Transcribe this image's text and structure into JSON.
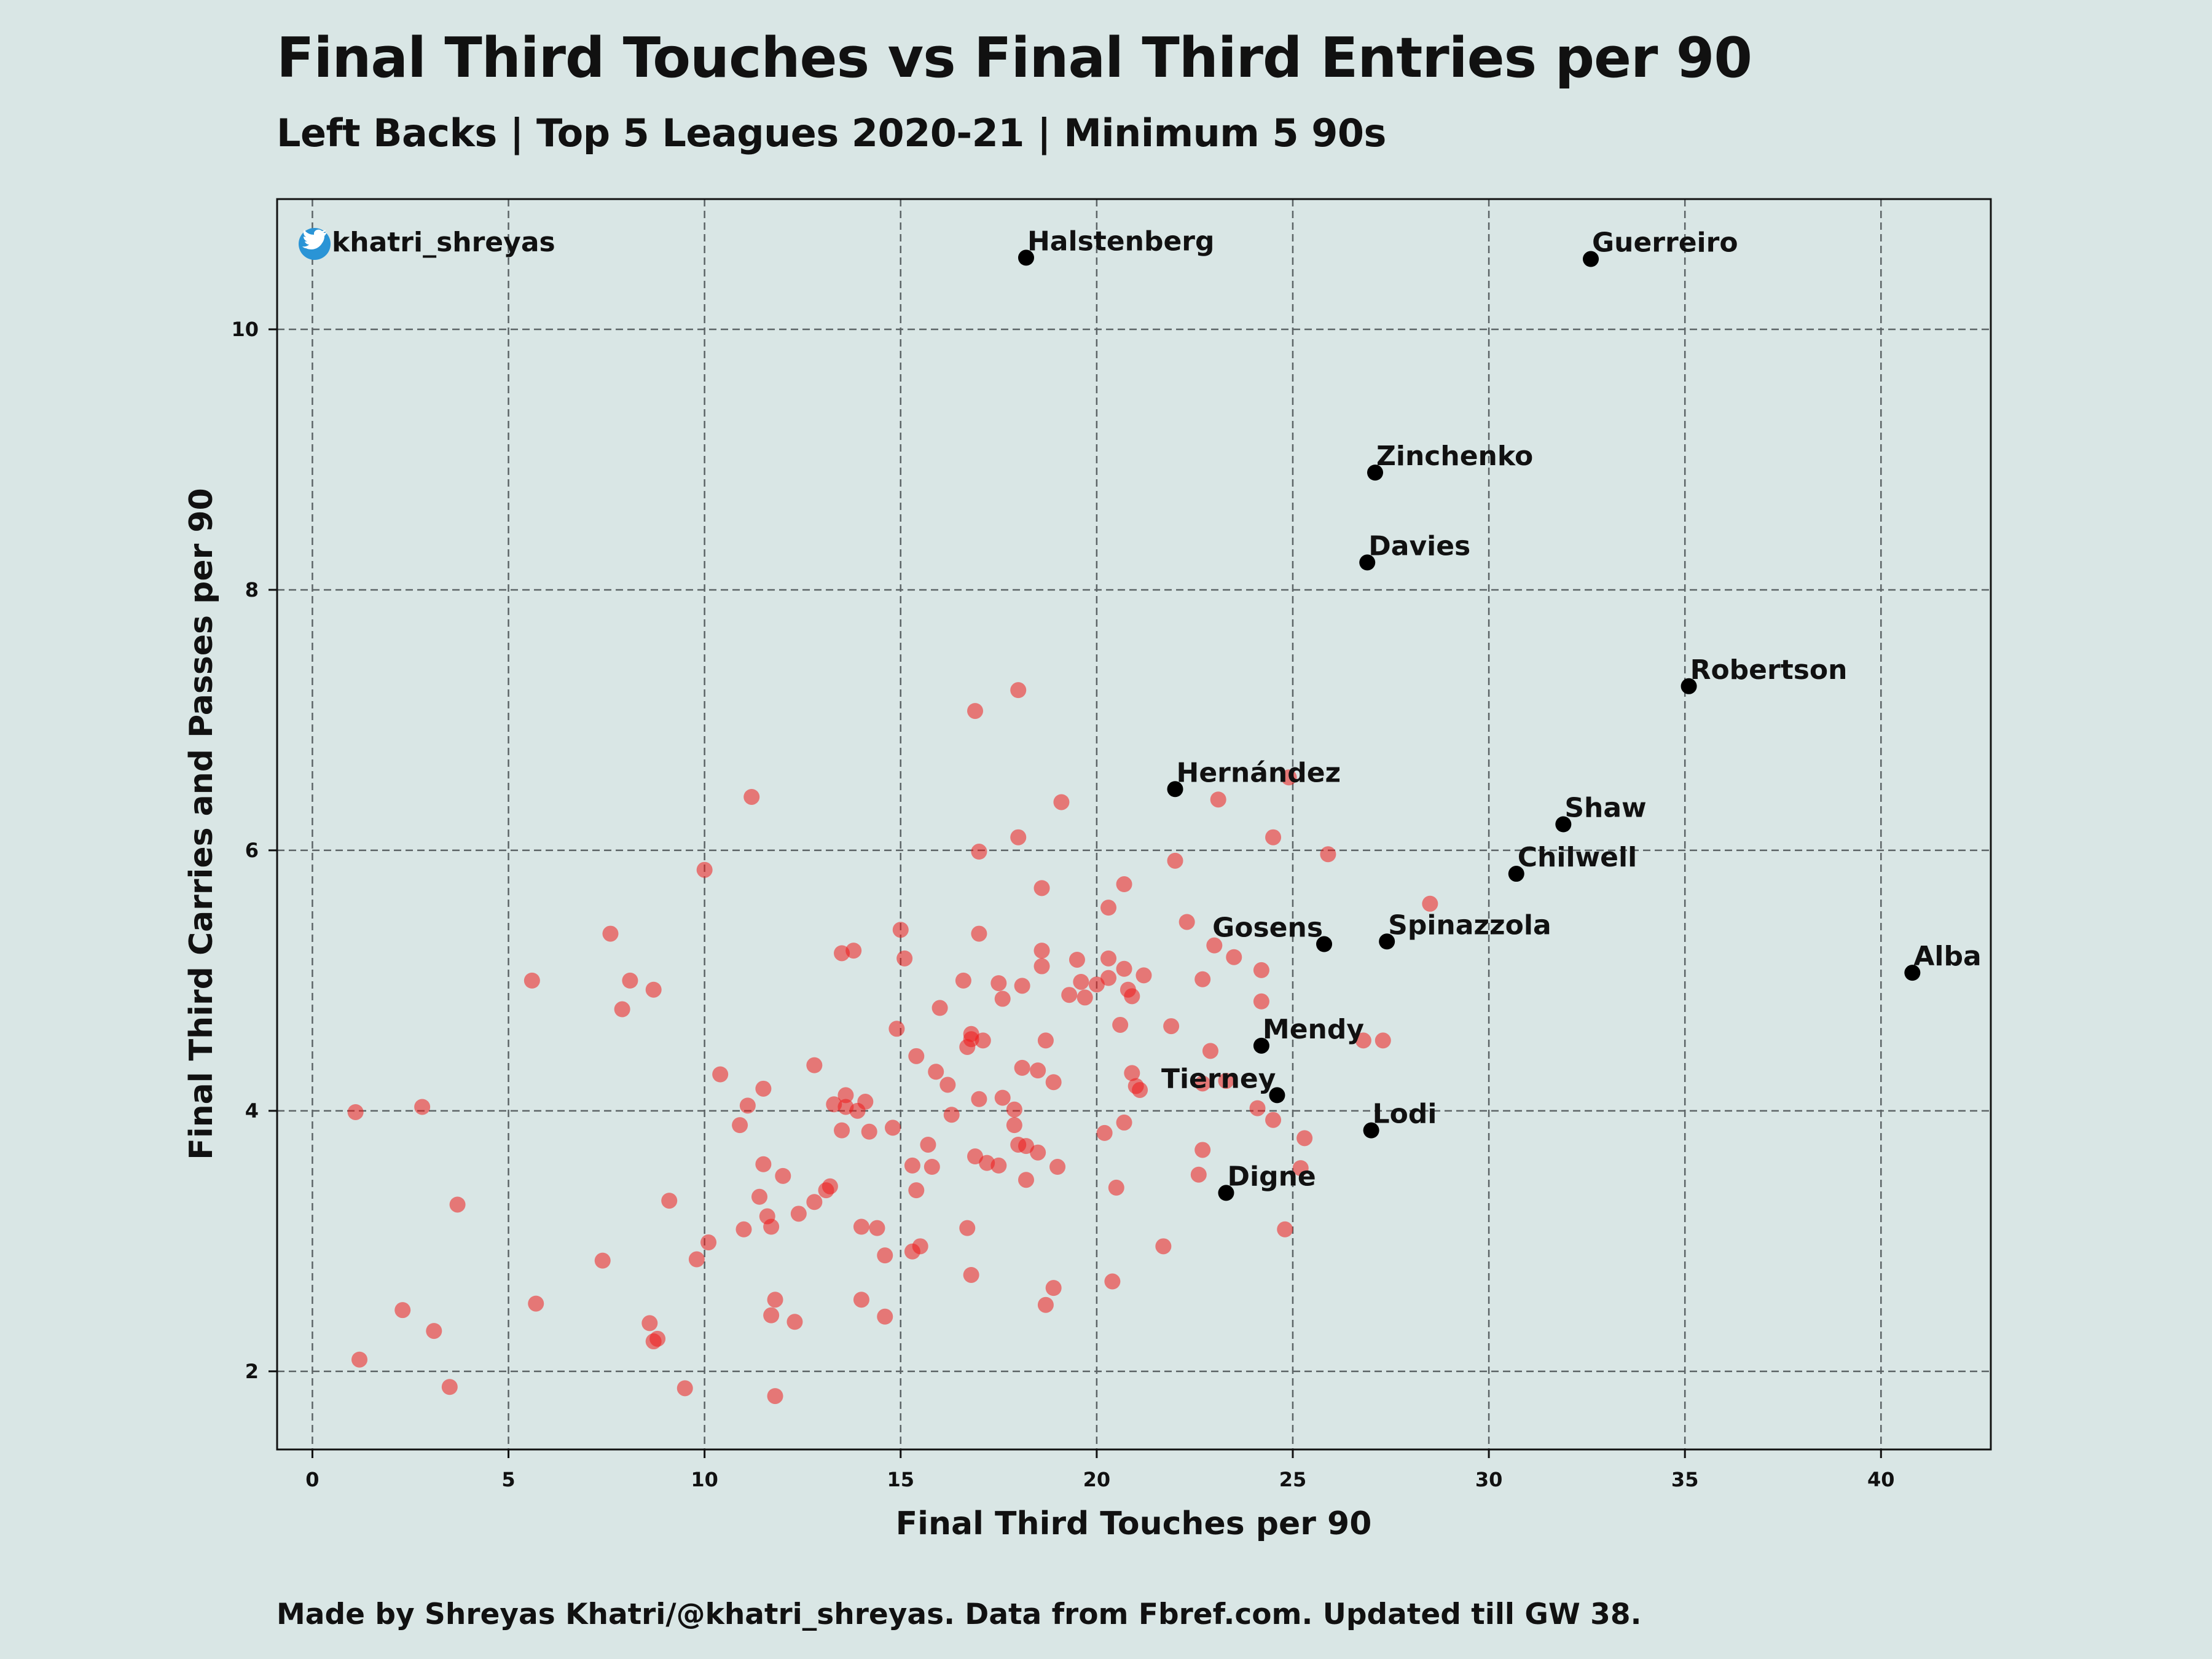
{
  "header": {
    "title": "Final Third Touches vs Final Third Entries per 90",
    "subtitle": "Left Backs | Top 5 Leagues 2020-21 | Minimum 5 90s"
  },
  "footer": {
    "text": "Made by Shreyas Khatri/@khatri_shreyas. Data from Fbref.com. Updated till GW 38."
  },
  "watermark": {
    "handle": "khatri_shreyas",
    "icon": "twitter-bird-icon",
    "icon_color": "#2a94d6"
  },
  "chart_data": {
    "type": "scatter",
    "xlabel": "Final Third Touches per 90",
    "ylabel": "Final Third Carries and Passes per 90",
    "xlim": [
      -0.9,
      42.8
    ],
    "ylim": [
      1.4,
      11.0
    ],
    "xticks": [
      0,
      5,
      10,
      15,
      20,
      25,
      30,
      35,
      40
    ],
    "yticks": [
      2,
      4,
      6,
      8,
      10
    ],
    "grid": true,
    "grid_style": "dashed",
    "colors": {
      "background": "#d9e6e5",
      "others": "#ee1c1c",
      "highlighted": "#000000",
      "grid": "#5c6466"
    },
    "series": [
      {
        "role": "others",
        "points": [
          [
            1.1,
            3.99
          ],
          [
            1.2,
            2.09
          ],
          [
            2.3,
            2.47
          ],
          [
            2.8,
            4.03
          ],
          [
            3.1,
            2.31
          ],
          [
            3.5,
            1.88
          ],
          [
            3.7,
            3.28
          ],
          [
            5.6,
            5.0
          ],
          [
            5.7,
            2.52
          ],
          [
            7.4,
            2.85
          ],
          [
            7.6,
            5.36
          ],
          [
            7.9,
            4.78
          ],
          [
            8.1,
            5.0
          ],
          [
            8.6,
            2.37
          ],
          [
            8.7,
            2.23
          ],
          [
            8.7,
            4.93
          ],
          [
            8.8,
            2.25
          ],
          [
            9.1,
            3.31
          ],
          [
            9.5,
            1.87
          ],
          [
            9.8,
            2.86
          ],
          [
            10.0,
            5.85
          ],
          [
            10.1,
            2.99
          ],
          [
            10.4,
            4.28
          ],
          [
            10.9,
            3.89
          ],
          [
            11.0,
            3.09
          ],
          [
            11.1,
            4.04
          ],
          [
            11.2,
            6.41
          ],
          [
            11.4,
            3.34
          ],
          [
            11.5,
            3.59
          ],
          [
            11.5,
            4.17
          ],
          [
            11.6,
            3.19
          ],
          [
            11.7,
            2.43
          ],
          [
            11.7,
            3.11
          ],
          [
            11.8,
            2.55
          ],
          [
            11.8,
            1.81
          ],
          [
            12.0,
            3.5
          ],
          [
            12.3,
            2.38
          ],
          [
            12.4,
            3.21
          ],
          [
            12.8,
            3.3
          ],
          [
            12.8,
            4.35
          ],
          [
            13.1,
            3.39
          ],
          [
            13.2,
            3.42
          ],
          [
            13.3,
            4.05
          ],
          [
            13.5,
            3.85
          ],
          [
            13.5,
            5.21
          ],
          [
            13.6,
            4.12
          ],
          [
            13.6,
            4.03
          ],
          [
            13.8,
            5.23
          ],
          [
            13.9,
            4.0
          ],
          [
            14.0,
            2.55
          ],
          [
            14.0,
            3.11
          ],
          [
            14.1,
            4.07
          ],
          [
            14.2,
            3.84
          ],
          [
            14.4,
            3.1
          ],
          [
            14.6,
            2.42
          ],
          [
            14.6,
            2.89
          ],
          [
            14.8,
            3.87
          ],
          [
            14.9,
            4.63
          ],
          [
            15.0,
            5.39
          ],
          [
            15.1,
            5.17
          ],
          [
            15.3,
            2.92
          ],
          [
            15.3,
            3.58
          ],
          [
            15.4,
            3.39
          ],
          [
            15.4,
            4.42
          ],
          [
            15.5,
            2.96
          ],
          [
            15.7,
            3.74
          ],
          [
            15.8,
            3.57
          ],
          [
            15.9,
            4.3
          ],
          [
            16.0,
            4.79
          ],
          [
            16.2,
            4.2
          ],
          [
            16.3,
            3.97
          ],
          [
            16.6,
            5.0
          ],
          [
            16.7,
            4.49
          ],
          [
            16.7,
            3.1
          ],
          [
            16.8,
            4.55
          ],
          [
            16.8,
            4.59
          ],
          [
            16.8,
            2.74
          ],
          [
            16.9,
            3.65
          ],
          [
            16.9,
            7.07
          ],
          [
            17.0,
            5.36
          ],
          [
            17.0,
            5.99
          ],
          [
            17.0,
            4.09
          ],
          [
            17.1,
            4.54
          ],
          [
            17.2,
            3.6
          ],
          [
            17.5,
            4.98
          ],
          [
            17.5,
            3.58
          ],
          [
            17.6,
            4.86
          ],
          [
            17.6,
            4.1
          ],
          [
            17.9,
            3.89
          ],
          [
            17.9,
            4.01
          ],
          [
            18.0,
            6.1
          ],
          [
            18.0,
            7.23
          ],
          [
            18.0,
            3.74
          ],
          [
            18.1,
            4.33
          ],
          [
            18.1,
            4.96
          ],
          [
            18.2,
            3.73
          ],
          [
            18.2,
            3.47
          ],
          [
            18.5,
            4.31
          ],
          [
            18.5,
            3.68
          ],
          [
            18.6,
            5.71
          ],
          [
            18.6,
            5.23
          ],
          [
            18.6,
            5.11
          ],
          [
            18.7,
            4.54
          ],
          [
            18.7,
            2.51
          ],
          [
            18.9,
            2.64
          ],
          [
            18.9,
            4.22
          ],
          [
            19.0,
            3.57
          ],
          [
            19.1,
            6.37
          ],
          [
            19.3,
            4.89
          ],
          [
            19.5,
            5.16
          ],
          [
            19.6,
            4.99
          ],
          [
            19.7,
            4.87
          ],
          [
            20.0,
            4.97
          ],
          [
            20.2,
            3.83
          ],
          [
            20.3,
            5.17
          ],
          [
            20.3,
            5.56
          ],
          [
            20.3,
            5.02
          ],
          [
            20.4,
            2.69
          ],
          [
            20.5,
            3.41
          ],
          [
            20.6,
            4.66
          ],
          [
            20.7,
            3.91
          ],
          [
            20.7,
            5.74
          ],
          [
            20.7,
            5.09
          ],
          [
            20.8,
            4.93
          ],
          [
            20.9,
            4.88
          ],
          [
            20.9,
            4.29
          ],
          [
            21.0,
            4.19
          ],
          [
            21.1,
            4.16
          ],
          [
            21.2,
            5.04
          ],
          [
            21.7,
            2.96
          ],
          [
            21.9,
            4.65
          ],
          [
            22.0,
            5.92
          ],
          [
            22.3,
            5.45
          ],
          [
            22.6,
            3.51
          ],
          [
            22.7,
            5.01
          ],
          [
            22.7,
            4.21
          ],
          [
            22.7,
            3.7
          ],
          [
            22.9,
            4.46
          ],
          [
            23.0,
            5.27
          ],
          [
            23.1,
            6.39
          ],
          [
            23.3,
            4.23
          ],
          [
            23.5,
            5.18
          ],
          [
            24.1,
            4.02
          ],
          [
            24.2,
            5.08
          ],
          [
            24.2,
            4.84
          ],
          [
            24.5,
            3.93
          ],
          [
            24.5,
            6.1
          ],
          [
            24.8,
            3.09
          ],
          [
            24.9,
            6.56
          ],
          [
            25.2,
            3.56
          ],
          [
            25.3,
            3.79
          ],
          [
            25.9,
            5.97
          ],
          [
            26.8,
            4.54
          ],
          [
            27.3,
            4.54
          ],
          [
            28.5,
            5.59
          ]
        ]
      },
      {
        "role": "highlighted",
        "points": [
          {
            "name": "Halstenberg",
            "x": 18.2,
            "y": 10.55
          },
          {
            "name": "Guerreiro",
            "x": 32.6,
            "y": 10.54
          },
          {
            "name": "Zinchenko",
            "x": 27.1,
            "y": 8.9
          },
          {
            "name": "Davies",
            "x": 26.9,
            "y": 8.21
          },
          {
            "name": "Robertson",
            "x": 35.1,
            "y": 7.26
          },
          {
            "name": "Hernández",
            "x": 22.0,
            "y": 6.47
          },
          {
            "name": "Shaw",
            "x": 31.9,
            "y": 6.2
          },
          {
            "name": "Chilwell",
            "x": 30.7,
            "y": 5.82
          },
          {
            "name": "Gosens",
            "x": 25.8,
            "y": 5.28
          },
          {
            "name": "Spinazzola",
            "x": 27.4,
            "y": 5.3
          },
          {
            "name": "Alba",
            "x": 40.8,
            "y": 5.06
          },
          {
            "name": "Mendy",
            "x": 24.2,
            "y": 4.5
          },
          {
            "name": "Tierney",
            "x": 24.6,
            "y": 4.12
          },
          {
            "name": "Lodi",
            "x": 27.0,
            "y": 3.85
          },
          {
            "name": "Digne",
            "x": 23.3,
            "y": 3.37
          }
        ]
      }
    ]
  }
}
